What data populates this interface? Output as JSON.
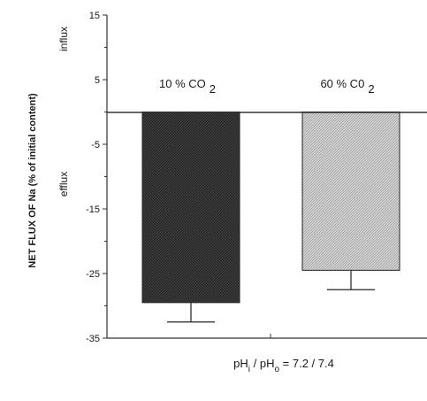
{
  "chart_data": {
    "type": "bar",
    "categories": [
      "10 % CO 2",
      "60 % C0 2"
    ],
    "category_label_parts": [
      {
        "main": "10 % CO",
        "sub": "2"
      },
      {
        "main": "60 % C0",
        "sub": "2"
      }
    ],
    "values": [
      -29.5,
      -24.5
    ],
    "error": [
      3.0,
      3.0
    ],
    "bar_colors": [
      "#2a2a2a",
      "#c8c8c8"
    ],
    "ylabel": "NET FLUX OF Na (% of initial content)",
    "ylim": [
      -35,
      15
    ],
    "yticks": [
      15,
      5,
      -5,
      -15,
      -25,
      -35
    ],
    "annotations": [
      "influx",
      "efflux"
    ],
    "xlabel_parts": {
      "p1": "pH",
      "s1": "i",
      "p2": " / pH",
      "s2": "o",
      "p3": " = 7.2 / 7.4"
    },
    "grid": false,
    "legend": "none"
  }
}
